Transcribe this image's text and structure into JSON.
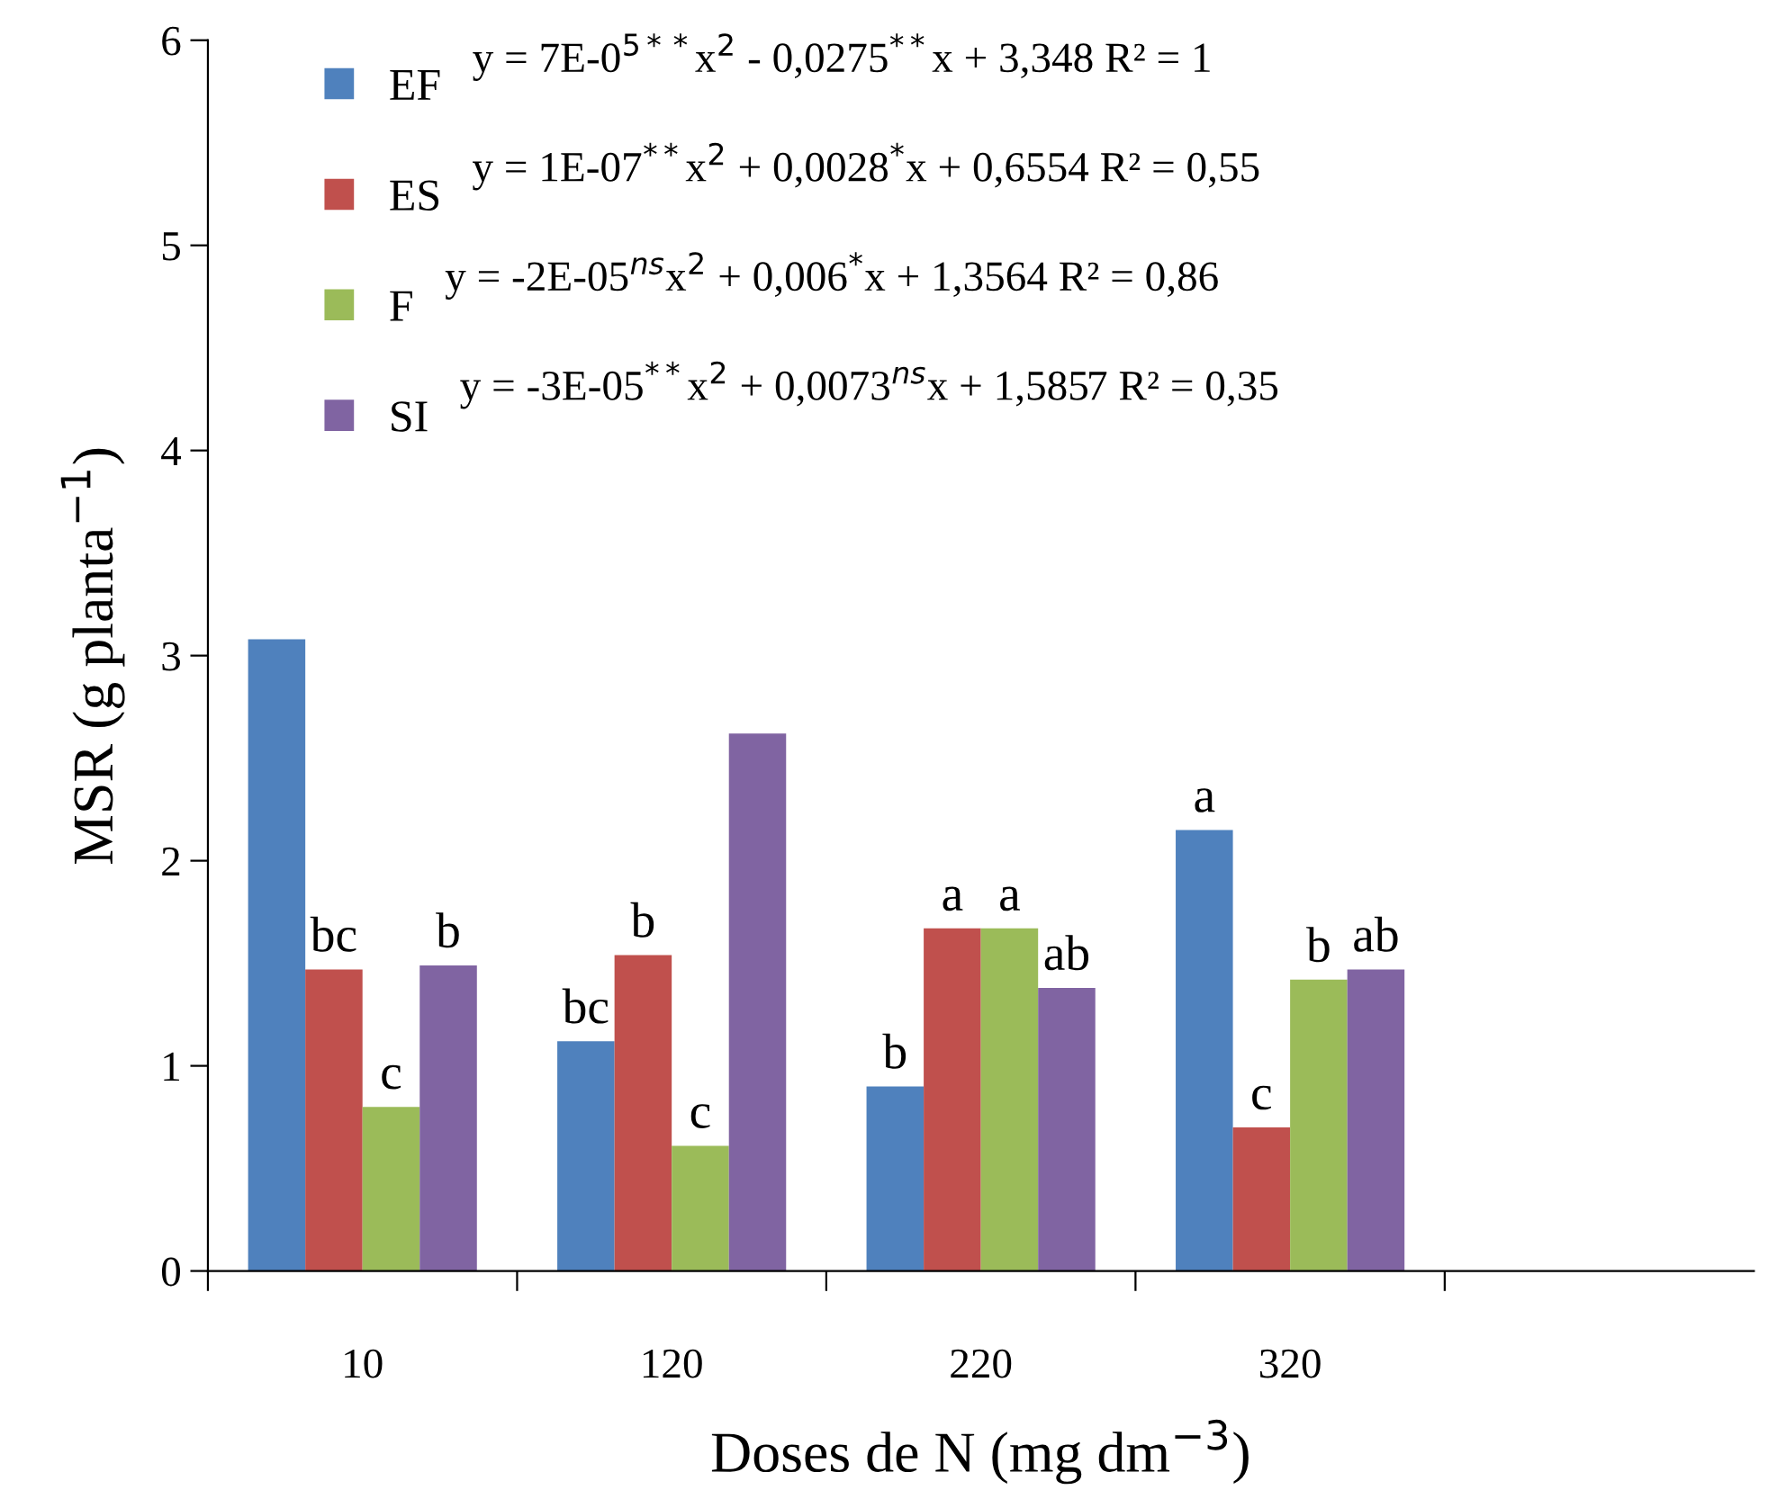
{
  "chart_data": {
    "type": "bar",
    "xlabel": "Doses de N (mg dm$^{−3}$)",
    "ylabel": "MSR (g planta$^{−1}$)",
    "categories": [
      "10",
      "120",
      "220",
      "320",
      null
    ],
    "series": [
      {
        "name": "EF",
        "color": "#4f81bd",
        "values": [
          3.08,
          1.12,
          0.9,
          2.15,
          null
        ],
        "value_labels": [
          null,
          "bc",
          "b",
          "a",
          null
        ]
      },
      {
        "name": "ES",
        "color": "#c0504d",
        "values": [
          1.47,
          1.54,
          1.67,
          0.7,
          null
        ],
        "value_labels": [
          "bc",
          "b",
          "a",
          "c",
          null
        ]
      },
      {
        "name": "F",
        "color": "#9bbb59",
        "values": [
          0.8,
          0.61,
          1.67,
          1.42,
          null
        ],
        "value_labels": [
          "c",
          "c",
          "a",
          "b",
          null
        ]
      },
      {
        "name": "SI",
        "color": "#8064a2",
        "values": [
          1.49,
          2.62,
          1.38,
          1.47,
          null
        ],
        "value_labels": [
          "b",
          null,
          "ab",
          "ab",
          null
        ]
      }
    ],
    "annotations": [
      "y = 7E-0$^{5**}$x$^{2}$ - 0,0275$^{**}$x + 3,348 R² = 1",
      "y = 1E-07$^{**}$x$^{2}$ + 0,0028$^{*}$x + 0,6554 R² = 0,55",
      "y = -2E-05$^{ns}$x$^{2}$ + 0,006$^{*}$x + 1,3564 R² = 0,86",
      "y = -3E-05$^{**}$x$^{2}$ + 0,0073$^{ns}$x + 1,5857 R² = 0,35"
    ],
    "ylim": [
      0,
      6
    ],
    "yticks": [
      0,
      1,
      2,
      3,
      4,
      5,
      6
    ],
    "grid": false,
    "legend": "top left"
  }
}
